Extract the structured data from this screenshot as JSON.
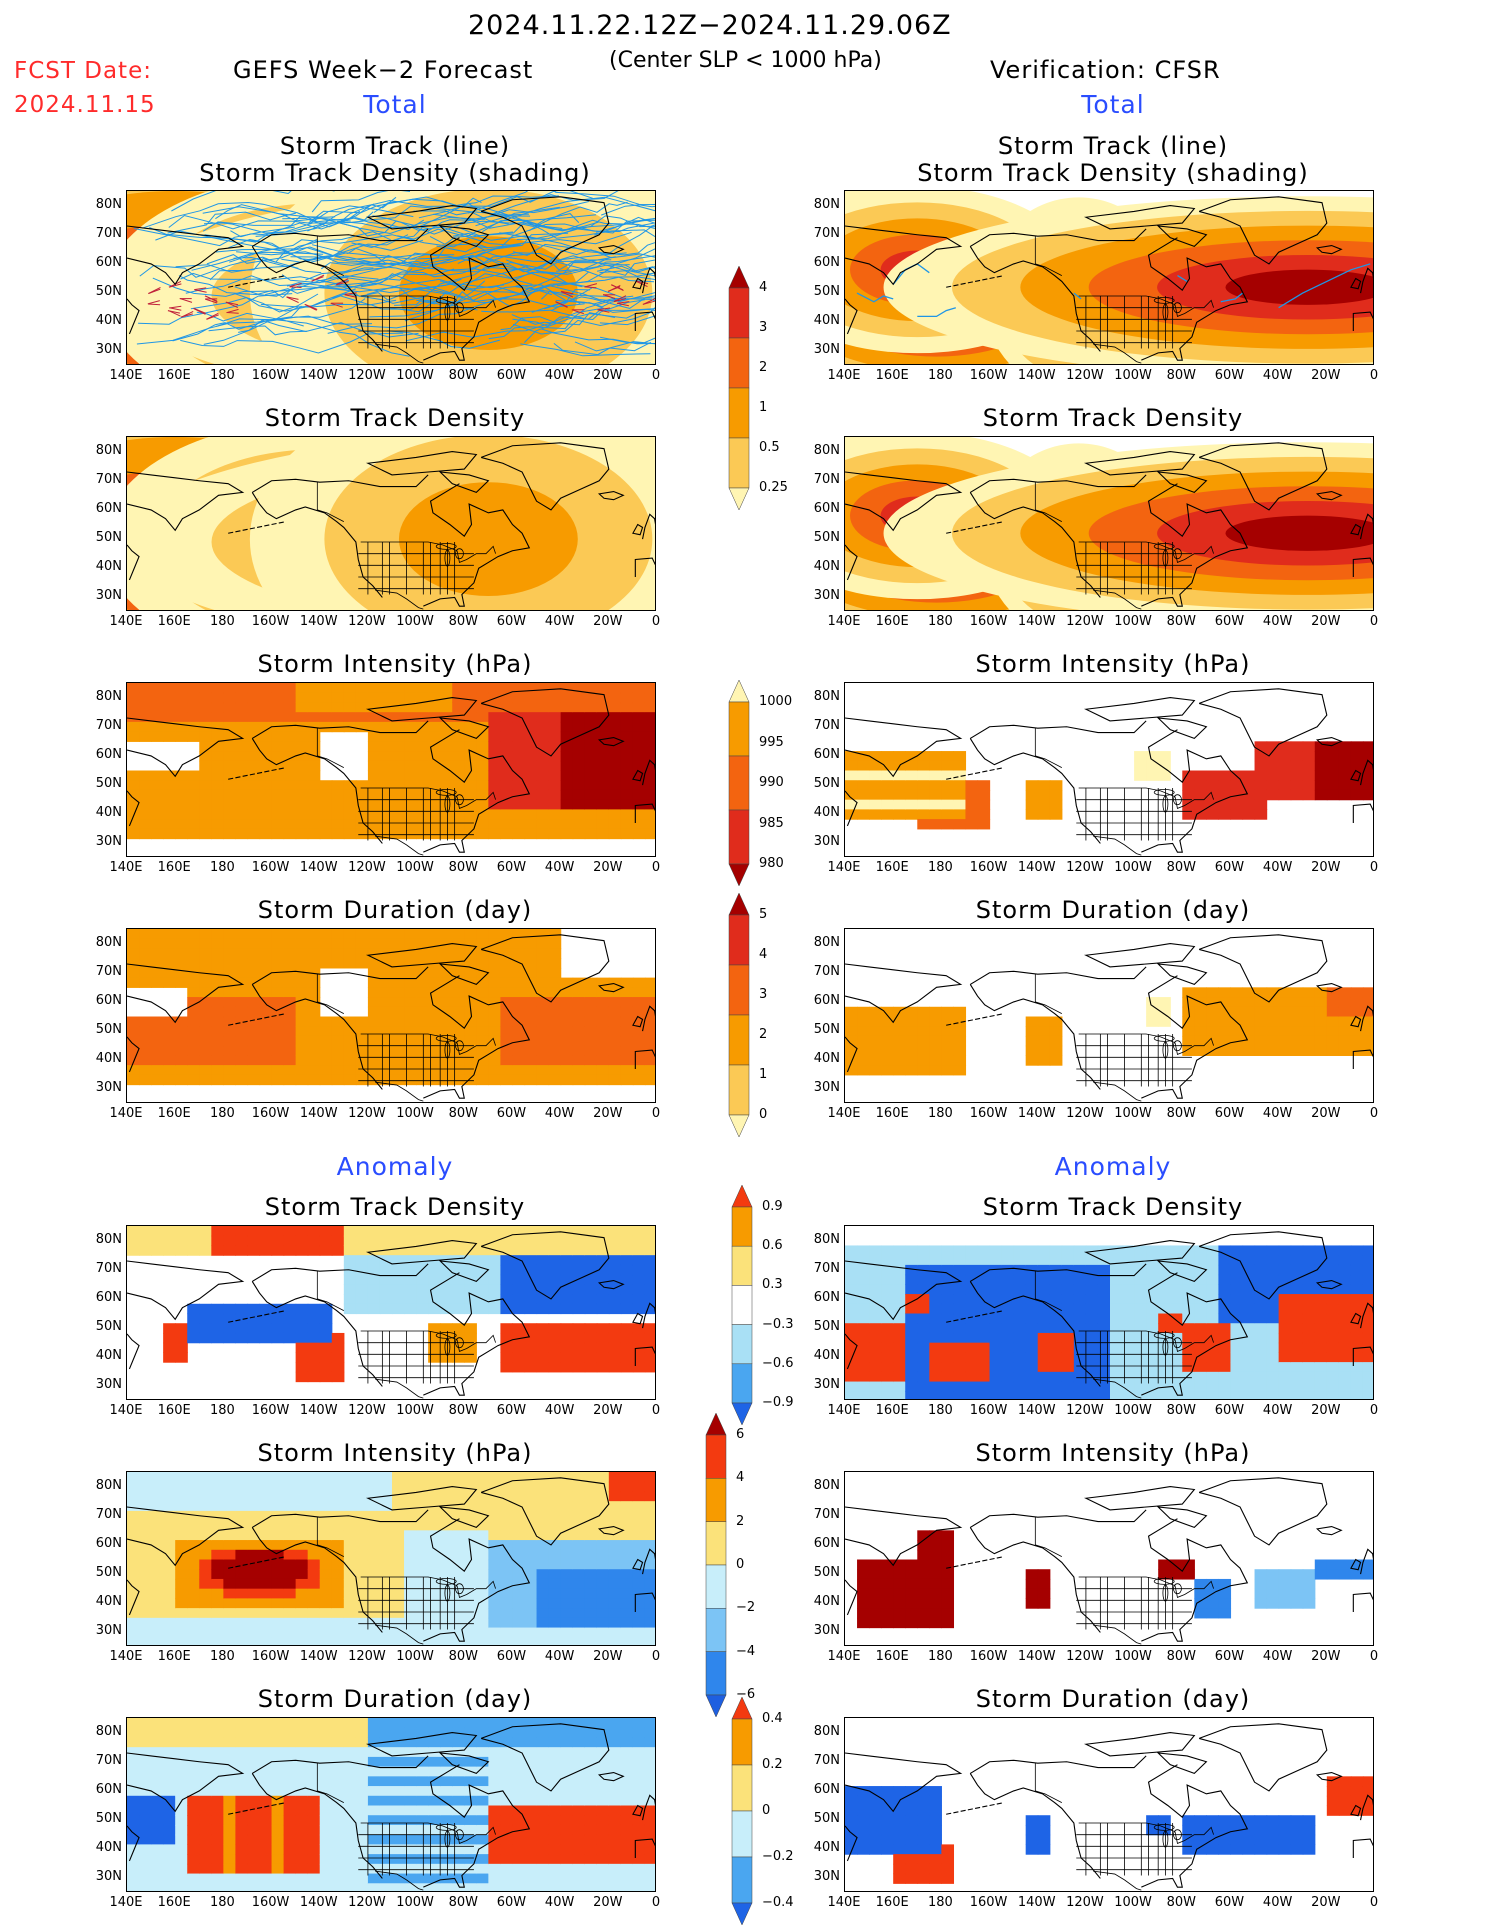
{
  "header": {
    "period": "2024.11.22.12Z−2024.11.29.06Z",
    "criterion": "(Center SLP < 1000 hPa)",
    "fcst_label": "FCST Date:",
    "fcst_date": "2024.11.15",
    "left_title": "GEFS Week−2 Forecast",
    "right_title": "Verification: CFSR",
    "total_label": "Total",
    "anomaly_label": "Anomaly"
  },
  "panel_titles": {
    "track_line": "Storm Track (line)",
    "track_shading": "Storm Track Density (shading)",
    "density": "Storm Track Density",
    "intensity": "Storm Intensity (hPa)",
    "duration": "Storm Duration (day)"
  },
  "axes": {
    "lat_labels": [
      "80N",
      "70N",
      "60N",
      "50N",
      "40N",
      "30N"
    ],
    "lon_labels": [
      "140E",
      "160E",
      "180",
      "160W",
      "140W",
      "120W",
      "100W",
      "80W",
      "60W",
      "40W",
      "20W",
      "0"
    ],
    "lon_range": [
      "140E",
      "0"
    ],
    "lat_range": [
      "25N",
      "85N"
    ]
  },
  "colorbars": {
    "density_total": {
      "labels": [
        "4",
        "3",
        "2",
        "1",
        "0.5",
        "0.25"
      ],
      "colors": [
        "#a50000",
        "#e02c1c",
        "#f36410",
        "#f79b00",
        "#fbc955",
        "#fff5b3"
      ]
    },
    "intensity_total": {
      "labels": [
        "1000",
        "995",
        "990",
        "985",
        "980"
      ],
      "colors": [
        "#fff5b3",
        "#f79b00",
        "#f36410",
        "#e02c1c",
        "#a50000"
      ]
    },
    "duration_total": {
      "labels": [
        "5",
        "4",
        "3",
        "2",
        "1",
        "0"
      ],
      "colors": [
        "#a50000",
        "#e02c1c",
        "#f36410",
        "#f79b00",
        "#fbc955",
        "#fff5b3"
      ]
    },
    "density_anom": {
      "labels": [
        "0.9",
        "0.6",
        "0.3",
        "−0.3",
        "−0.6",
        "−0.9"
      ],
      "colors": [
        "#f33a10",
        "#f79b00",
        "#fbe27a",
        "#ffffff",
        "#a9e0f5",
        "#4aa6f0",
        "#1e64e6"
      ]
    },
    "intensity_anom": {
      "labels": [
        "6",
        "4",
        "2",
        "0",
        "−2",
        "−4",
        "−6"
      ],
      "colors": [
        "#a50000",
        "#f33a10",
        "#f79b00",
        "#fbe27a",
        "#c8eefa",
        "#7cc4f5",
        "#2f86ec",
        "#1e5fe0"
      ]
    },
    "duration_anom": {
      "labels": [
        "0.4",
        "0.2",
        "0",
        "−0.2",
        "−0.4"
      ],
      "colors": [
        "#f33a10",
        "#f79b00",
        "#fbe27a",
        "#c8eefa",
        "#4aa6f0",
        "#1e64e6"
      ]
    }
  },
  "map_fields": {
    "gefs_track": [
      {
        "lon": 160,
        "lat": 49,
        "level": 4,
        "rx": 60,
        "ry": 45
      },
      {
        "lon": -142,
        "lat": 49,
        "level": 3,
        "rx": 40,
        "ry": 32
      },
      {
        "lon": -25,
        "lat": 49,
        "level": 4,
        "rx": 90,
        "ry": 30
      },
      {
        "lon": -70,
        "lat": 50,
        "level": 2,
        "rx": 45,
        "ry": 40
      }
    ],
    "cfsr_track": [
      {
        "lon": 150,
        "lat": 50,
        "level": 5,
        "rx": 35,
        "ry": 28
      },
      {
        "lon": 178,
        "lat": 45,
        "level": 5,
        "rx": 40,
        "ry": 25
      },
      {
        "lon": 170,
        "lat": 58,
        "level": 4,
        "rx": 30,
        "ry": 22
      },
      {
        "lon": -123,
        "lat": 49,
        "level": 5,
        "rx": 18,
        "ry": 26
      },
      {
        "lon": -80,
        "lat": 55,
        "level": 4,
        "rx": 20,
        "ry": 20
      },
      {
        "lon": -60,
        "lat": 48,
        "level": 5,
        "rx": 30,
        "ry": 22
      },
      {
        "lon": -28,
        "lat": 52,
        "level": 5,
        "rx": 80,
        "ry": 24
      }
    ]
  }
}
